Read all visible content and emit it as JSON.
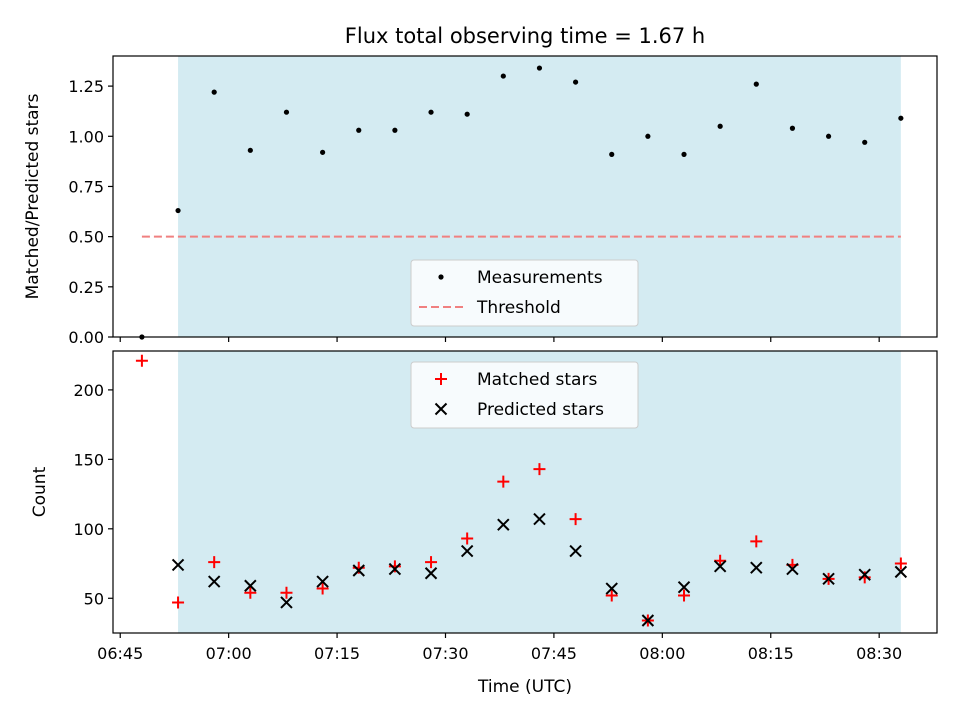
{
  "title": "Flux total observing time = 1.67 h",
  "colors": {
    "shade": "#add8e6",
    "measurement": "#000000",
    "threshold": "#f08080",
    "matched": "#ff0000",
    "predicted": "#000000"
  },
  "chart_data": [
    {
      "type": "scatter",
      "ylabel": "Matched/Predicted stars",
      "ylim": [
        0,
        1.4
      ],
      "yticks": [
        0,
        0.25,
        0.5,
        0.75,
        1.0,
        1.25
      ],
      "ytick_labels": [
        "0.00",
        "0.25",
        "0.50",
        "0.75",
        "1.00",
        "1.25"
      ],
      "xlim": [
        "06:44",
        "08:38"
      ],
      "shaded_span": [
        "06:53",
        "08:33"
      ],
      "legend_position": "lower-center",
      "series": [
        {
          "name": "Measurements",
          "marker": "dot",
          "x": [
            "06:48",
            "06:53",
            "06:58",
            "07:03",
            "07:08",
            "07:13",
            "07:18",
            "07:23",
            "07:28",
            "07:33",
            "07:38",
            "07:43",
            "07:48",
            "07:53",
            "07:58",
            "08:03",
            "08:08",
            "08:13",
            "08:18",
            "08:23",
            "08:28",
            "08:33"
          ],
          "y": [
            0.0,
            0.63,
            1.22,
            0.93,
            1.12,
            0.92,
            1.03,
            1.03,
            1.12,
            1.11,
            1.3,
            1.34,
            1.27,
            0.91,
            1.0,
            0.91,
            1.05,
            1.26,
            1.04,
            1.0,
            0.97,
            1.09
          ]
        },
        {
          "name": "Threshold",
          "style": "dashed",
          "x": [
            "06:48",
            "08:33"
          ],
          "y": [
            0.5,
            0.5
          ]
        }
      ]
    },
    {
      "type": "scatter",
      "xlabel": "Time (UTC)",
      "ylabel": "Count",
      "ylim": [
        25,
        228
      ],
      "yticks": [
        50,
        100,
        150,
        200
      ],
      "ytick_labels": [
        "50",
        "100",
        "150",
        "200"
      ],
      "xlim": [
        "06:44",
        "08:38"
      ],
      "xticks": [
        "06:45",
        "07:00",
        "07:15",
        "07:30",
        "07:45",
        "08:00",
        "08:15",
        "08:30"
      ],
      "shaded_span": [
        "06:53",
        "08:33"
      ],
      "legend_position": "upper-center",
      "series": [
        {
          "name": "Matched stars",
          "marker": "plus",
          "x": [
            "06:48",
            "06:53",
            "06:58",
            "07:03",
            "07:08",
            "07:13",
            "07:18",
            "07:23",
            "07:28",
            "07:33",
            "07:38",
            "07:43",
            "07:48",
            "07:53",
            "07:58",
            "08:03",
            "08:08",
            "08:13",
            "08:18",
            "08:23",
            "08:28",
            "08:33"
          ],
          "y": [
            221,
            47,
            76,
            54,
            54,
            57,
            72,
            73,
            76,
            93,
            134,
            143,
            107,
            52,
            34,
            52,
            77,
            91,
            74,
            64,
            65,
            75
          ]
        },
        {
          "name": "Predicted stars",
          "marker": "x",
          "x": [
            "06:48",
            "06:53",
            "06:58",
            "07:03",
            "07:08",
            "07:13",
            "07:18",
            "07:23",
            "07:28",
            "07:33",
            "07:38",
            "07:43",
            "07:48",
            "07:53",
            "07:58",
            "08:03",
            "08:08",
            "08:13",
            "08:18",
            "08:23",
            "08:28",
            "08:33"
          ],
          "y": [
            null,
            74,
            62,
            59,
            47,
            62,
            70,
            71,
            68,
            84,
            103,
            107,
            84,
            57,
            34,
            58,
            73,
            72,
            71,
            64,
            67,
            69
          ]
        }
      ]
    }
  ]
}
